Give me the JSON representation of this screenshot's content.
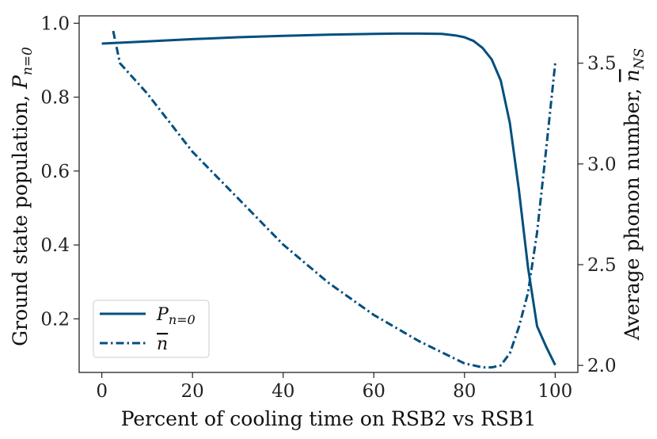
{
  "chart_data": {
    "type": "line",
    "xlabel": "Percent of cooling time on RSB2 vs RSB1",
    "ylabel_left": {
      "main": "Ground state population, ",
      "symbol": "P",
      "subscript": "n=0"
    },
    "ylabel_right": {
      "main": "Average phonon number, ",
      "symbol": "n",
      "subscript": "NS"
    },
    "xlim": [
      -5,
      105
    ],
    "ylim_left": [
      0.055,
      1.02
    ],
    "ylim_right": [
      1.965,
      3.735
    ],
    "x_ticks": [
      0,
      20,
      40,
      60,
      80,
      100
    ],
    "y_left_ticks": [
      0.2,
      0.4,
      0.6,
      0.8,
      1.0
    ],
    "y_right_ticks": [
      2.0,
      2.5,
      3.0,
      3.5
    ],
    "legend": {
      "position": "lower-left",
      "entries": [
        {
          "symbol": "P",
          "subscript": "n=0",
          "style": "solid"
        },
        {
          "symbol": "n",
          "subscript": "",
          "style": "dashdot"
        }
      ]
    },
    "color": "#034f7e",
    "series": [
      {
        "name": "P_{n=0}",
        "axis": "left",
        "style": "solid",
        "x": [
          0,
          10,
          20,
          30,
          40,
          50,
          60,
          65,
          70,
          75,
          78,
          80,
          82,
          84,
          86,
          88,
          90,
          92,
          94,
          96,
          98,
          100
        ],
        "values": [
          0.945,
          0.951,
          0.957,
          0.962,
          0.966,
          0.969,
          0.971,
          0.972,
          0.972,
          0.971,
          0.967,
          0.962,
          0.952,
          0.933,
          0.902,
          0.845,
          0.73,
          0.55,
          0.34,
          0.18,
          0.125,
          0.075
        ]
      },
      {
        "name": "n̄",
        "axis": "right",
        "style": "dashdot",
        "x": [
          2.5,
          4,
          6,
          10,
          20,
          30,
          40,
          50,
          60,
          70,
          80,
          84,
          86,
          88,
          90,
          92,
          94,
          96,
          98,
          100
        ],
        "values": [
          3.66,
          3.5,
          3.45,
          3.35,
          3.06,
          2.83,
          2.6,
          2.41,
          2.25,
          2.12,
          2.01,
          1.99,
          1.99,
          2.0,
          2.06,
          2.19,
          2.36,
          2.66,
          3.07,
          3.5
        ]
      }
    ]
  }
}
